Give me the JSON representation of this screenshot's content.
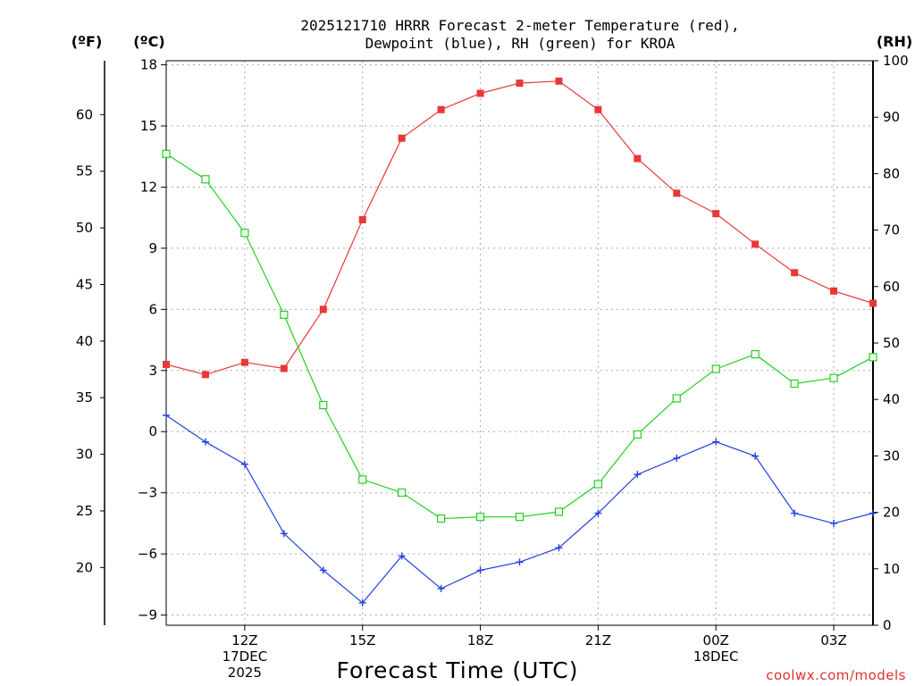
{
  "chart_data": {
    "type": "line",
    "title": [
      "2025121710 HRRR Forecast 2-meter Temperature (red),",
      "Dewpoint (blue), RH (green) for KROA"
    ],
    "xlabel": "Forecast Time (UTC)",
    "units": {
      "f": "(ºF)",
      "c": "(ºC)",
      "rh": "(RH)"
    },
    "x_hours": [
      10,
      11,
      12,
      13,
      14,
      15,
      16,
      17,
      18,
      19,
      20,
      21,
      22,
      23,
      24,
      25,
      26,
      27,
      28
    ],
    "xlim": [
      10,
      28
    ],
    "x_ticks": [
      {
        "hour": 12,
        "lines": [
          "12Z",
          "17DEC",
          "2025"
        ]
      },
      {
        "hour": 15,
        "lines": [
          "15Z"
        ]
      },
      {
        "hour": 18,
        "lines": [
          "18Z"
        ]
      },
      {
        "hour": 21,
        "lines": [
          "21Z"
        ]
      },
      {
        "hour": 24,
        "lines": [
          "00Z",
          "18DEC"
        ]
      },
      {
        "hour": 27,
        "lines": [
          "03Z"
        ]
      }
    ],
    "celsius_axis": {
      "ylim": [
        -9.5,
        18.2
      ],
      "ticks": [
        18,
        15,
        12,
        9,
        6,
        3,
        0,
        -3,
        -6,
        -9
      ]
    },
    "fahrenheit_axis": {
      "ticks": [
        60,
        55,
        50,
        45,
        40,
        35,
        30,
        25,
        20
      ]
    },
    "rh_axis": {
      "ylim": [
        0,
        100
      ],
      "ticks": [
        100,
        90,
        80,
        70,
        60,
        50,
        40,
        30,
        20,
        10,
        0
      ]
    },
    "series": [
      {
        "name": "Temperature",
        "color": "#e83838",
        "axis": "c",
        "marker": "filled-square",
        "values": [
          3.3,
          2.8,
          3.4,
          3.1,
          6.0,
          10.4,
          14.4,
          15.8,
          16.6,
          17.1,
          17.2,
          15.8,
          13.4,
          11.7,
          10.7,
          9.2,
          7.8,
          6.9,
          6.3
        ]
      },
      {
        "name": "Dewpoint",
        "color": "#2040e0",
        "axis": "c",
        "marker": "plus",
        "values": [
          0.8,
          -0.5,
          -1.6,
          -5.0,
          -6.8,
          -8.4,
          -6.1,
          -7.7,
          -6.8,
          -6.4,
          -5.7,
          -4.0,
          -2.1,
          -1.3,
          -0.5,
          -1.2,
          -4.0,
          -4.5,
          -4.0
        ]
      },
      {
        "name": "RH",
        "color": "#20d020",
        "axis": "rh",
        "marker": "open-square",
        "values": [
          83.5,
          79,
          69.5,
          55,
          39,
          25.8,
          23.5,
          18.9,
          19.2,
          19.2,
          20.1,
          25,
          33.8,
          40.2,
          45.4,
          48,
          42.8,
          43.8,
          47.5
        ]
      }
    ],
    "credit": "coolwx.com/models"
  }
}
